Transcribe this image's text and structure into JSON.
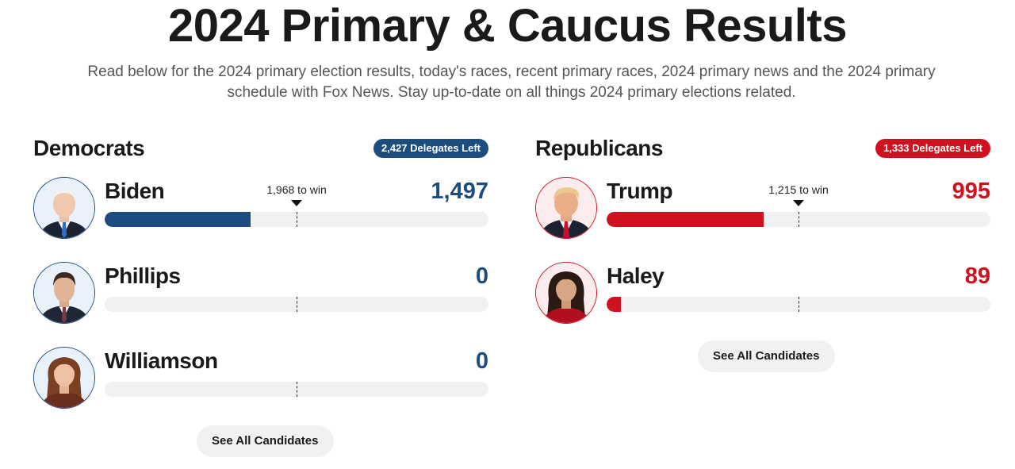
{
  "page": {
    "title": "2024 Primary & Caucus Results",
    "intro": "Read below for the 2024 primary election results, today's races, recent primary races, 2024 primary news and the 2024 primary schedule with Fox News. Stay up-to-date on all things 2024 primary elections related."
  },
  "colors": {
    "democrat_blue": "#1d4c7f",
    "republican_red": "#d0111f",
    "track_gray": "#f1f1f1"
  },
  "democrats": {
    "title": "Democrats",
    "delegates_left": "2,427 Delegates Left",
    "to_win_label": "1,968 to win",
    "to_win_fraction": 0.5,
    "see_all_label": "See All Candidates",
    "candidates": [
      {
        "name": "Biden",
        "delegates": "1,497",
        "progress": 0.38,
        "photo_icon": "biden-portrait"
      },
      {
        "name": "Phillips",
        "delegates": "0",
        "progress": 0,
        "photo_icon": "phillips-portrait"
      },
      {
        "name": "Williamson",
        "delegates": "0",
        "progress": 0,
        "photo_icon": "williamson-portrait"
      }
    ]
  },
  "republicans": {
    "title": "Republicans",
    "delegates_left": "1,333 Delegates Left",
    "to_win_label": "1,215 to win",
    "to_win_fraction": 0.5,
    "see_all_label": "See All Candidates",
    "candidates": [
      {
        "name": "Trump",
        "delegates": "995",
        "progress": 0.41,
        "photo_icon": "trump-portrait"
      },
      {
        "name": "Haley",
        "delegates": "89",
        "progress": 0.037,
        "photo_icon": "haley-portrait"
      }
    ]
  }
}
